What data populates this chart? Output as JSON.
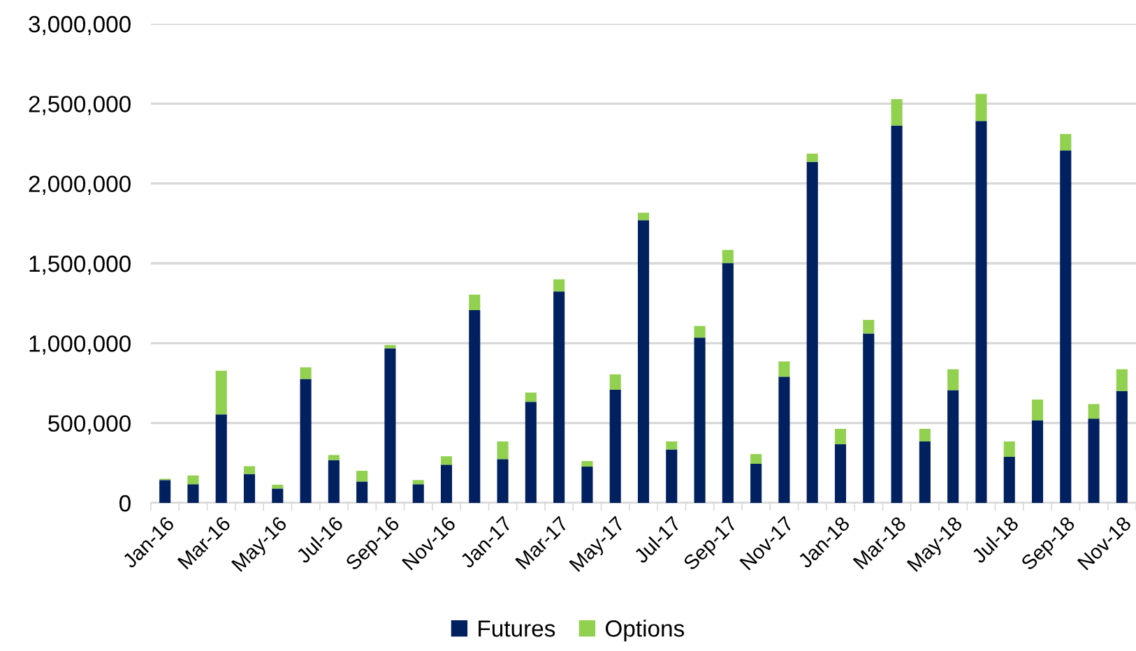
{
  "chart_data": {
    "type": "bar",
    "stacked": true,
    "categories": [
      "Jan-16",
      null,
      "Mar-16",
      null,
      "May-16",
      null,
      "Jul-16",
      null,
      "Sep-16",
      null,
      "Nov-16",
      null,
      "Jan-17",
      null,
      "Mar-17",
      null,
      "May-17",
      null,
      "Jul-17",
      null,
      "Sep-17",
      null,
      "Nov-17",
      null,
      "Jan-18",
      null,
      "Mar-18",
      null,
      "May-18",
      null,
      "Jul-18",
      null,
      "Sep-18",
      null,
      "Nov-18"
    ],
    "series": [
      {
        "name": "Futures",
        "color": "#002060",
        "values": [
          143000,
          117000,
          554000,
          181000,
          90000,
          776000,
          268000,
          134000,
          968000,
          117000,
          239000,
          1207000,
          274000,
          633000,
          1324000,
          227000,
          709000,
          1770000,
          335000,
          1035000,
          1502000,
          245000,
          790000,
          2135000,
          367000,
          1061000,
          2362000,
          385000,
          706000,
          2391000,
          289000,
          516000,
          2207000,
          528000,
          700000
        ]
      },
      {
        "name": "Options",
        "color": "#92d050",
        "values": [
          8000,
          55000,
          274000,
          49000,
          24000,
          73000,
          32000,
          67000,
          21000,
          26000,
          53000,
          97000,
          111000,
          58000,
          76000,
          35000,
          96000,
          47000,
          50000,
          73000,
          82000,
          61000,
          96000,
          52000,
          97000,
          85000,
          166000,
          79000,
          131000,
          170000,
          96000,
          131000,
          103000,
          91000,
          137000
        ]
      }
    ],
    "ylim": [
      0,
      3000000
    ],
    "yticks": [
      {
        "value": 0,
        "label": "0"
      },
      {
        "value": 500000,
        "label": "500,000"
      },
      {
        "value": 1000000,
        "label": "1,000,000"
      },
      {
        "value": 1500000,
        "label": "1,500,000"
      },
      {
        "value": 2000000,
        "label": "2,000,000"
      },
      {
        "value": 2500000,
        "label": "2,500,000"
      },
      {
        "value": 3000000,
        "label": "3,000,000"
      }
    ],
    "grid": "y",
    "legend": "bottom"
  }
}
